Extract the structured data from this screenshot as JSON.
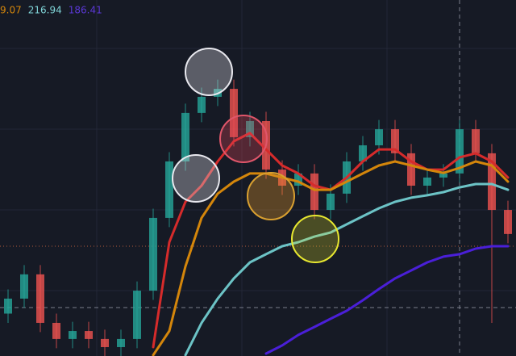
{
  "chart_data": {
    "type": "candlestick",
    "legend": [
      "9.07",
      "216.94",
      "186.41"
    ],
    "legend_colors": [
      "#d4860b",
      "#7fd3d6",
      "#5b38d6"
    ],
    "ylim": [
      127.1,
      319.4
    ],
    "categories": [
      null,
      null,
      null,
      null,
      null,
      null,
      null,
      null,
      null,
      null,
      null,
      null,
      null,
      null,
      null,
      null,
      null,
      null,
      null,
      null,
      null,
      null,
      null,
      null,
      null,
      null,
      null,
      null,
      null,
      null,
      null,
      null
    ],
    "up_color": "#26a69a",
    "down_color": "#ef5350",
    "open": [
      150.0,
      158.1,
      171.2,
      145.0,
      136.3,
      140.6,
      136.3,
      131.9,
      136.3,
      162.4,
      201.7,
      232.2,
      258.4,
      267.1,
      271.4,
      245.3,
      254.0,
      227.8,
      219.1,
      225.7,
      206.0,
      214.8,
      232.2,
      240.9,
      249.6,
      236.6,
      219.1,
      223.5,
      225.7,
      249.6,
      236.6,
      206.0
    ],
    "high": [
      163.1,
      176.2,
      176.2,
      150.0,
      145.6,
      145.6,
      141.3,
      141.3,
      167.4,
      206.7,
      237.2,
      263.4,
      272.1,
      276.4,
      276.4,
      259.0,
      259.0,
      232.8,
      230.7,
      230.7,
      219.8,
      237.2,
      245.9,
      254.6,
      254.6,
      241.6,
      228.5,
      230.7,
      254.6,
      254.6,
      241.6,
      211.0
    ],
    "low": [
      145.0,
      153.1,
      140.0,
      131.3,
      131.3,
      131.3,
      126.9,
      126.9,
      131.3,
      157.4,
      196.7,
      227.2,
      253.4,
      262.1,
      240.3,
      240.3,
      222.8,
      214.1,
      214.1,
      201.0,
      201.0,
      209.8,
      227.2,
      235.9,
      231.6,
      214.1,
      214.1,
      218.5,
      220.7,
      231.6,
      145.0,
      188.0
    ],
    "close": [
      158.1,
      171.2,
      145.0,
      136.3,
      140.6,
      136.3,
      131.9,
      136.3,
      162.4,
      201.7,
      232.2,
      258.4,
      267.1,
      271.4,
      245.3,
      254.0,
      227.8,
      219.1,
      225.7,
      206.0,
      214.8,
      232.2,
      240.9,
      249.6,
      236.6,
      219.1,
      223.5,
      225.7,
      249.6,
      236.6,
      206.0,
      193.0
    ],
    "series": [
      {
        "color": "#d62b2b",
        "values": [
          null,
          null,
          null,
          null,
          null,
          null,
          null,
          null,
          null,
          131.9,
          188.6,
          210.4,
          219.1,
          232.2,
          243.1,
          247.5,
          238.7,
          230.0,
          225.7,
          219.1,
          216.9,
          223.5,
          232.2,
          238.7,
          238.7,
          232.2,
          227.8,
          227.8,
          234.4,
          236.6,
          232.2,
          223.5
        ]
      },
      {
        "color": "#d4860b",
        "values": [
          null,
          null,
          null,
          null,
          null,
          null,
          null,
          null,
          null,
          127.6,
          140.6,
          175.5,
          201.7,
          214.8,
          221.3,
          225.7,
          225.7,
          223.5,
          221.3,
          216.9,
          216.9,
          221.3,
          225.7,
          230.0,
          232.2,
          230.0,
          227.8,
          226.0,
          228.7,
          232.2,
          230.0,
          221.3
        ]
      },
      {
        "color": "#6cc3c6",
        "values": [
          null,
          null,
          null,
          null,
          null,
          null,
          null,
          null,
          null,
          null,
          null,
          127.6,
          145.0,
          158.1,
          169.0,
          177.7,
          182.1,
          186.4,
          188.6,
          191.6,
          193.8,
          198.2,
          202.6,
          206.9,
          210.4,
          212.6,
          213.9,
          215.6,
          218.2,
          220.0,
          220.0,
          216.9
        ]
      },
      {
        "color": "#4a1fd8",
        "values": [
          null,
          null,
          null,
          null,
          null,
          null,
          null,
          null,
          null,
          null,
          null,
          null,
          null,
          null,
          null,
          null,
          128.4,
          132.8,
          138.5,
          142.8,
          147.2,
          151.5,
          157.2,
          163.3,
          169.0,
          173.3,
          177.7,
          180.8,
          182.1,
          185.1,
          186.4,
          186.4
        ]
      }
    ]
  }
}
